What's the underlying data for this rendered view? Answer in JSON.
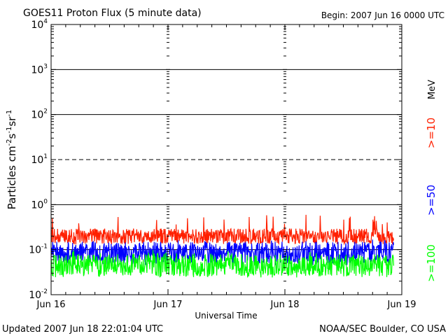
{
  "chart_data": {
    "type": "line",
    "title": "GOES11 Proton Flux (5 minute data)",
    "begin_label": "Begin: 2007 Jun 16 0000 UTC",
    "xlabel": "Universal Time",
    "ylabel": "Particles cm",
    "ylabel_sup_1": "-2",
    "ylabel_mid_1": "s",
    "ylabel_sup_2": "-1",
    "ylabel_mid_2": "sr",
    "ylabel_sup_3": "-1",
    "x_ticks": [
      "Jun 16",
      "Jun 17",
      "Jun 18",
      "Jun 19"
    ],
    "x_range_days": [
      0,
      3
    ],
    "y_scale": "log",
    "ylim": [
      0.01,
      10000
    ],
    "y_ticks": [
      {
        "base": "10",
        "exp": "-2"
      },
      {
        "base": "10",
        "exp": "-1"
      },
      {
        "base": "10",
        "exp": "0"
      },
      {
        "base": "10",
        "exp": "1"
      },
      {
        "base": "10",
        "exp": "2"
      },
      {
        "base": "10",
        "exp": "3"
      },
      {
        "base": "10",
        "exp": "4"
      }
    ],
    "threshold_lines": [
      {
        "value": 1000,
        "style": "solid"
      },
      {
        "value": 100,
        "style": "solid"
      },
      {
        "value": 10,
        "style": "dashed"
      },
      {
        "value": 1,
        "style": "solid"
      },
      {
        "value": 0.1,
        "style": "solid"
      }
    ],
    "legend_placement": "right",
    "series": [
      {
        "name": ">=10",
        "color": "#ff2000",
        "baseline": 0.2,
        "low": 0.13,
        "high": 0.6,
        "data_end_day": 2.93
      },
      {
        "name": ">=50",
        "color": "#0000ff",
        "baseline": 0.085,
        "low": 0.045,
        "high": 0.17,
        "data_end_day": 2.93
      },
      {
        "name": ">=100",
        "color": "#00ff00",
        "baseline": 0.045,
        "low": 0.024,
        "high": 0.1,
        "data_end_day": 2.93
      }
    ],
    "legend_unit": "MeV"
  },
  "footer": {
    "updated": "Updated 2007 Jun 18 22:01:04 UTC",
    "source": "NOAA/SEC Boulder, CO USA"
  }
}
